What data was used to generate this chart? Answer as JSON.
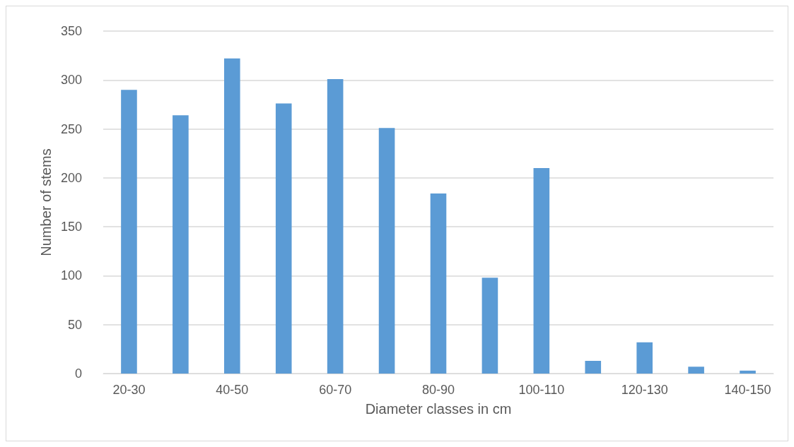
{
  "chart_data": {
    "type": "bar",
    "xlabel": "Diameter classes in cm",
    "ylabel": "Number of stems",
    "categories": [
      "20-30",
      null,
      "40-50",
      null,
      "60-70",
      null,
      "80-90",
      null,
      "100-110",
      null,
      "120-130",
      null,
      "140-150"
    ],
    "values": [
      290,
      264,
      322,
      276,
      301,
      251,
      184,
      98,
      210,
      13,
      32,
      7,
      3
    ],
    "color": "#5b9bd5",
    "ylim": [
      0,
      350
    ],
    "yticks": [
      0,
      50,
      100,
      150,
      200,
      250,
      300,
      350
    ],
    "grid": "y"
  }
}
